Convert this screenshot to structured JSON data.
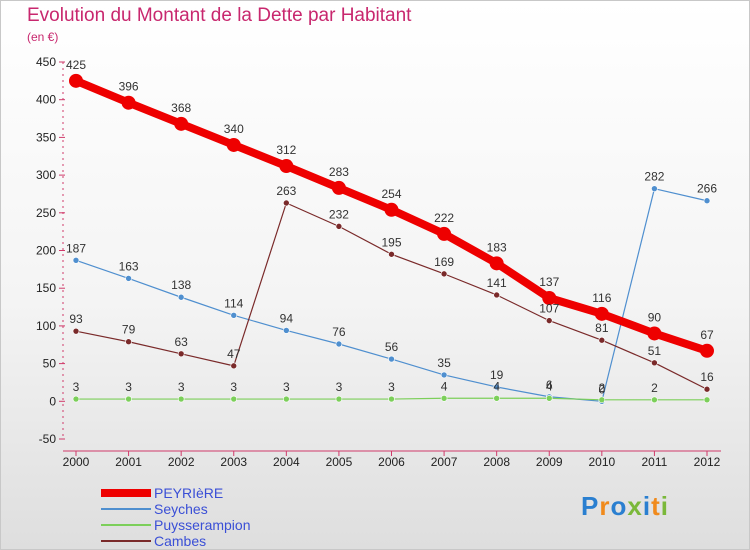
{
  "title": "Evolution du Montant de la Dette par Habitant",
  "subtitle": "(en €)",
  "logo": "Proxiti",
  "chart_data": {
    "type": "line",
    "x": [
      "2000",
      "2001",
      "2002",
      "2003",
      "2004",
      "2005",
      "2006",
      "2007",
      "2008",
      "2009",
      "2010",
      "2011",
      "2012"
    ],
    "ylim": [
      -50,
      450
    ],
    "yticks": [
      -50,
      0,
      50,
      100,
      150,
      200,
      250,
      300,
      350,
      400,
      450
    ],
    "grid": false,
    "legend_position": "bottom-left",
    "series": [
      {
        "name": "PEYRIèRE",
        "color": "#ee0000",
        "width": 8,
        "markerR": 7,
        "values": [
          425,
          396,
          368,
          340,
          312,
          283,
          254,
          222,
          183,
          137,
          116,
          90,
          67
        ],
        "labels": [
          "425",
          "396",
          "368",
          "340",
          "312",
          "283",
          "254",
          "222",
          "183",
          "137",
          "116",
          "90",
          "67"
        ]
      },
      {
        "name": "Seyches",
        "color": "#4f8fcf",
        "width": 1.2,
        "markerR": 3,
        "values": [
          187,
          163,
          138,
          114,
          94,
          76,
          56,
          35,
          19,
          6,
          0,
          282,
          266
        ],
        "labels": [
          "187",
          "163",
          "138",
          "114",
          "94",
          "76",
          "56",
          "35",
          "19",
          "6",
          "0",
          "282",
          "266"
        ]
      },
      {
        "name": "Puysserampion",
        "color": "#7ccf5a",
        "width": 1.2,
        "markerR": 3,
        "values": [
          3,
          3,
          3,
          3,
          3,
          3,
          3,
          4,
          4,
          4,
          2,
          2,
          2
        ],
        "labels": [
          "3",
          "3",
          "3",
          "3",
          "3",
          "3",
          "3",
          "4",
          "4",
          "4",
          "2",
          "2",
          ""
        ]
      },
      {
        "name": "Cambes",
        "color": "#7a2a2a",
        "width": 1.2,
        "markerR": 3,
        "values": [
          93,
          79,
          63,
          47,
          263,
          232,
          195,
          169,
          141,
          107,
          81,
          51,
          16
        ],
        "labels": [
          "93",
          "79",
          "63",
          "47",
          "263",
          "232",
          "195",
          "169",
          "141",
          "107",
          "81",
          "51",
          "16"
        ]
      }
    ]
  }
}
